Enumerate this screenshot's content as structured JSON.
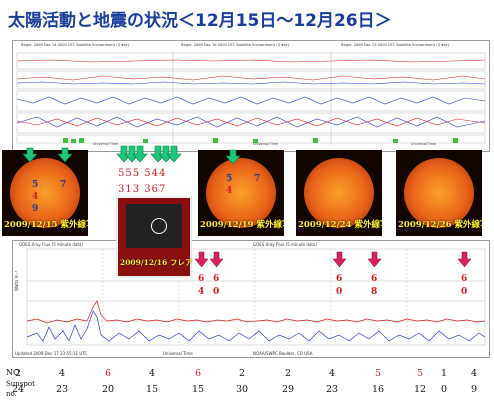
{
  "title": "太陽活動と地震の状況＜12月15日～12月26日＞",
  "top_panel": {
    "headers": [
      "Begin:  2009 Dec 14  0000 UTC  Satellite Environment (3 day)",
      "Begin:  2009 Dec 19  0000 UTC  Satellite Environment (3 day)",
      "Begin:  2009 Dec 23  0000 UTC  Satellite Environment (3 day)"
    ],
    "footers": [
      "Universal Time",
      "Universal Time",
      "Universal Time"
    ]
  },
  "sun_images": [
    {
      "caption": "2009/12/15  紫外線写真"
    },
    {
      "caption": "2009/12/19  紫外線写真"
    },
    {
      "caption": "2009/12/24  紫外線写真"
    },
    {
      "caption": "2009/12/26  紫外線写真"
    }
  ],
  "sun1_numbers": {
    "top": "5",
    "mid": "4",
    "bot_a": "9",
    "bot_b": "7"
  },
  "sun2_numbers": {
    "a": "5",
    "b": "4",
    "c": "7"
  },
  "sunspot_numbers": {
    "top": "555  544",
    "bottom": "313  367"
  },
  "flare_inset": {
    "caption": "2009/12/16  フレア"
  },
  "xray_panel": {
    "header": "GOES Xray Flux (5 minute data)",
    "ylabel": "Watts m⁻²",
    "footer_left": "Updated 2009 Dec 17 23:55:11 UTC",
    "footer_mid": "NOAA/SWPC Boulder, CO USA",
    "xlabel": "Universal Time"
  },
  "flare_marks": [
    {
      "top": "6",
      "bot": "4"
    },
    {
      "top": "6",
      "bot": "0"
    },
    {
      "top": "6",
      "bot": "0"
    },
    {
      "top": "6",
      "bot": "8"
    },
    {
      "top": "6",
      "bot": "0"
    }
  ],
  "table": {
    "no_label": "NO",
    "sunspot_label_1": "Sunspot",
    "sunspot_label_2": "no.",
    "no_values": [
      {
        "v": "2",
        "red": false
      },
      {
        "v": "4",
        "red": false
      },
      {
        "v": "6",
        "red": true
      },
      {
        "v": "4",
        "red": false
      },
      {
        "v": "6",
        "red": true
      },
      {
        "v": "2",
        "red": false
      },
      {
        "v": "2",
        "red": false
      },
      {
        "v": "4",
        "red": false
      },
      {
        "v": "5",
        "red": true
      },
      {
        "v": "5",
        "red": true
      },
      {
        "v": "1",
        "red": false
      },
      {
        "v": "4",
        "red": false
      }
    ],
    "sunspot_values": [
      "24",
      "23",
      "20",
      "15",
      "15",
      "30",
      "29",
      "23",
      "16",
      "12",
      "0",
      "9"
    ]
  },
  "colors": {
    "title": "#1a3d9c",
    "red": "#d21e1e",
    "green_arrow": "#1ec87a",
    "magenta_arrow": "#d8205a"
  }
}
